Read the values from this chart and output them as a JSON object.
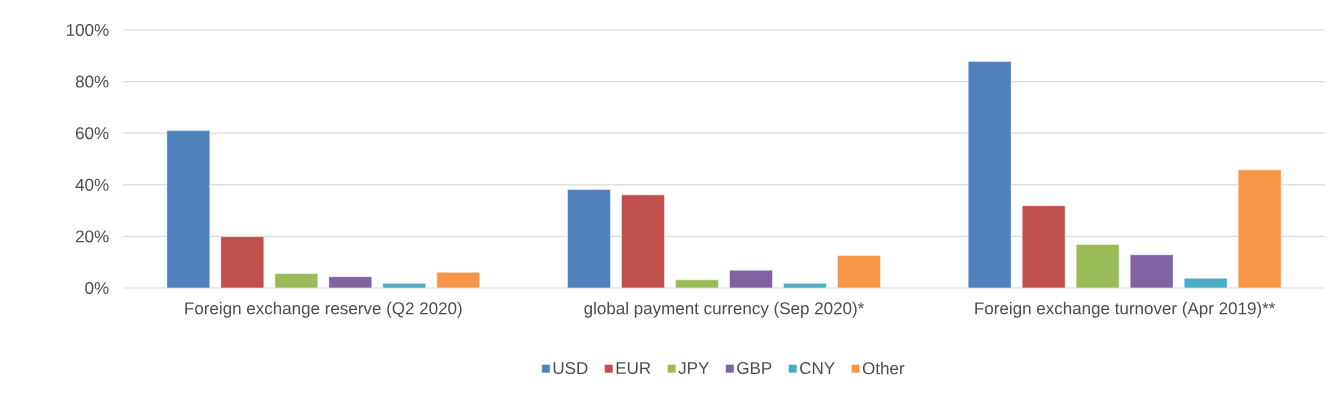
{
  "chart_data": {
    "type": "bar",
    "categories": [
      "Foreign exchange reserve (Q2 2020)",
      "global payment currency (Sep 2020)*",
      "Foreign exchange turnover (Apr 2019)**"
    ],
    "series": [
      {
        "name": "USD",
        "color": "#4f81bd",
        "values": [
          61.0,
          38.2,
          87.8
        ]
      },
      {
        "name": "EUR",
        "color": "#c0504d",
        "values": [
          19.9,
          36.1,
          31.9
        ]
      },
      {
        "name": "JPY",
        "color": "#9bbb59",
        "values": [
          5.6,
          3.2,
          16.9
        ]
      },
      {
        "name": "GBP",
        "color": "#8064a2",
        "values": [
          4.4,
          6.9,
          12.9
        ]
      },
      {
        "name": "CNY",
        "color": "#4bacc6",
        "values": [
          1.8,
          1.8,
          3.8
        ]
      },
      {
        "name": "Other",
        "color": "#f79646",
        "values": [
          6.1,
          12.6,
          45.8
        ]
      }
    ],
    "ylim": [
      0,
      100
    ],
    "yticks": [
      {
        "value": 0,
        "label": "0%"
      },
      {
        "value": 20,
        "label": "20%"
      },
      {
        "value": 40,
        "label": "40%"
      },
      {
        "value": 60,
        "label": "60%"
      },
      {
        "value": 80,
        "label": "80%"
      },
      {
        "value": 100,
        "label": "100%"
      }
    ],
    "grid": "y",
    "legend": "bottom"
  }
}
